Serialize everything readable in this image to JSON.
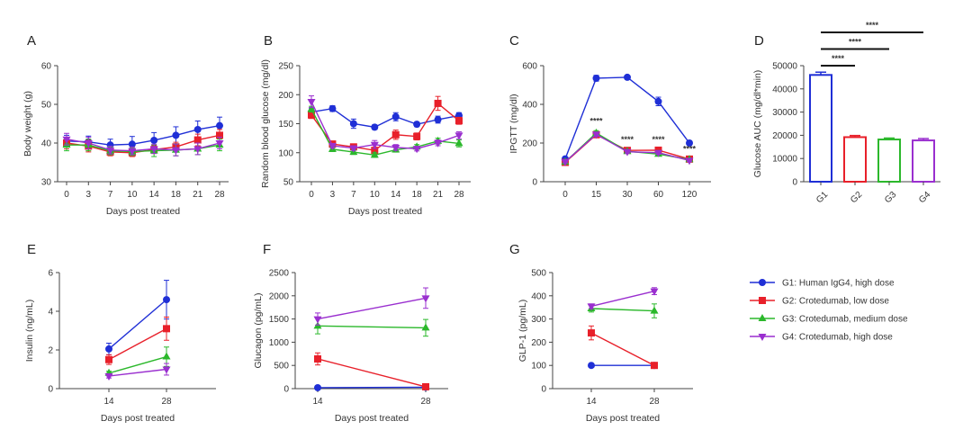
{
  "colors": {
    "G1": "#1f2fd6",
    "G2": "#e8202a",
    "G3": "#2bb82b",
    "G4": "#9a2fcf"
  },
  "legend": [
    {
      "group": "G1",
      "marker": "circle",
      "label": "G1: Human IgG4, high dose"
    },
    {
      "group": "G2",
      "marker": "square",
      "label": "G2: Crotedumab, low dose"
    },
    {
      "group": "G3",
      "marker": "triangle-up",
      "label": "G3: Crotedumab, medium dose"
    },
    {
      "group": "G4",
      "marker": "triangle-down",
      "label": "G4: Crotedumab, high dose"
    }
  ],
  "chart_data": [
    {
      "id": "A",
      "panel_label": "A",
      "type": "line",
      "xlabel": "Days post treated",
      "ylabel": "Body weight (g)",
      "categories": [
        "0",
        "3",
        "7",
        "10",
        "14",
        "18",
        "21",
        "28"
      ],
      "ylim": [
        30,
        60
      ],
      "yticks": [
        30,
        40,
        50,
        60
      ],
      "series": [
        {
          "group": "G1",
          "values": [
            40.5,
            40.3,
            39.5,
            39.7,
            40.7,
            42,
            43.5,
            44.5
          ],
          "err": [
            1.5,
            1.5,
            1.5,
            2,
            2,
            2.2,
            2.2,
            2.2
          ]
        },
        {
          "group": "G2",
          "values": [
            40,
            39.2,
            37.7,
            37.5,
            38.3,
            39,
            40.8,
            42
          ],
          "err": [
            1.5,
            1.5,
            1,
            1,
            1,
            1.2,
            1.5,
            1.5
          ]
        },
        {
          "group": "G3",
          "values": [
            39.5,
            39.5,
            38,
            37.8,
            38,
            38.2,
            38.5,
            39.5
          ],
          "err": [
            1.5,
            1.5,
            1,
            1,
            1.5,
            1.5,
            1.5,
            1.5
          ]
        },
        {
          "group": "G4",
          "values": [
            41,
            40,
            38.2,
            38,
            38.5,
            38.2,
            38.5,
            40
          ],
          "err": [
            1.5,
            1.5,
            1,
            1,
            1.2,
            1.5,
            1.5,
            1.5
          ]
        }
      ]
    },
    {
      "id": "B",
      "panel_label": "B",
      "type": "line",
      "xlabel": "Days post treated",
      "ylabel": "Random blood glucose (mg/dl)",
      "categories": [
        "0",
        "3",
        "7",
        "10",
        "14",
        "18",
        "21",
        "28"
      ],
      "ylim": [
        50,
        250
      ],
      "yticks": [
        50,
        100,
        150,
        200,
        250
      ],
      "series": [
        {
          "group": "G1",
          "values": [
            170,
            176,
            150,
            144,
            162,
            149,
            157,
            164
          ],
          "err": [
            6,
            5,
            8,
            4,
            7,
            4,
            6,
            5
          ]
        },
        {
          "group": "G2",
          "values": [
            165,
            115,
            110,
            104,
            131,
            128,
            185,
            155
          ],
          "err": [
            6,
            4,
            4,
            4,
            8,
            6,
            12,
            6
          ]
        },
        {
          "group": "G3",
          "values": [
            175,
            106,
            101,
            96,
            105,
            110,
            120,
            116
          ],
          "err": [
            5,
            4,
            4,
            4,
            4,
            4,
            5,
            6
          ]
        },
        {
          "group": "G4",
          "values": [
            188,
            112,
            108,
            114,
            109,
            107,
            117,
            130
          ],
          "err": [
            10,
            4,
            4,
            7,
            5,
            4,
            5,
            6
          ]
        }
      ]
    },
    {
      "id": "C",
      "panel_label": "C",
      "type": "line",
      "xlabel": "",
      "ylabel": "IPGTT (mg/dl)",
      "categories": [
        "0",
        "15",
        "30",
        "60",
        "120"
      ],
      "ylim": [
        0,
        600
      ],
      "yticks": [
        0,
        200,
        400,
        600
      ],
      "series": [
        {
          "group": "G1",
          "values": [
            118,
            535,
            540,
            415,
            200
          ],
          "err": [
            8,
            15,
            8,
            22,
            12
          ]
        },
        {
          "group": "G2",
          "values": [
            100,
            243,
            162,
            163,
            117
          ],
          "err": [
            6,
            12,
            8,
            8,
            6
          ]
        },
        {
          "group": "G3",
          "values": [
            102,
            252,
            157,
            143,
            115
          ],
          "err": [
            6,
            12,
            8,
            8,
            6
          ]
        },
        {
          "group": "G4",
          "values": [
            103,
            245,
            155,
            150,
            110
          ],
          "err": [
            6,
            12,
            8,
            8,
            6
          ]
        }
      ],
      "annotations": [
        {
          "x": "15",
          "text": "****",
          "y": 300
        },
        {
          "x": "30",
          "text": "****",
          "y": 205
        },
        {
          "x": "60",
          "text": "****",
          "y": 205
        },
        {
          "x": "120",
          "text": "****",
          "y": 155
        }
      ]
    },
    {
      "id": "D",
      "panel_label": "D",
      "type": "bar",
      "xlabel": "",
      "ylabel": "Glucose AUC (mg/dl*min)",
      "categories": [
        "G1",
        "G2",
        "G3",
        "G4"
      ],
      "values": [
        46000,
        19200,
        18200,
        17800
      ],
      "err": [
        1200,
        700,
        600,
        800
      ],
      "ylim": [
        0,
        50000
      ],
      "yticks": [
        0,
        10000,
        20000,
        30000,
        40000,
        50000
      ],
      "significance": [
        {
          "from": "G1",
          "to": "G2",
          "text": "****",
          "level": 1
        },
        {
          "from": "G1",
          "to": "G3",
          "text": "****",
          "level": 2
        },
        {
          "from": "G1",
          "to": "G4",
          "text": "****",
          "level": 3
        }
      ]
    },
    {
      "id": "E",
      "panel_label": "E",
      "type": "line",
      "xlabel": "Days post treated",
      "ylabel": "Insulin (ng/mL)",
      "categories": [
        "14",
        "28"
      ],
      "ylim": [
        0,
        6
      ],
      "yticks": [
        0,
        2,
        4,
        6
      ],
      "series": [
        {
          "group": "G1",
          "values": [
            2.05,
            4.6
          ],
          "err": [
            0.3,
            1.0
          ]
        },
        {
          "group": "G2",
          "values": [
            1.5,
            3.1
          ],
          "err": [
            0.25,
            0.6
          ]
        },
        {
          "group": "G3",
          "values": [
            0.8,
            1.65
          ],
          "err": [
            0.1,
            0.5
          ]
        },
        {
          "group": "G4",
          "values": [
            0.65,
            1.0
          ],
          "err": [
            0.1,
            0.3
          ]
        }
      ]
    },
    {
      "id": "F",
      "panel_label": "F",
      "type": "line",
      "xlabel": "Days post treated",
      "ylabel": "Glucagon (pg/mL)",
      "categories": [
        "14",
        "28"
      ],
      "ylim": [
        0,
        2500
      ],
      "yticks": [
        0,
        500,
        1000,
        1500,
        2000,
        2500
      ],
      "series": [
        {
          "group": "G1",
          "values": [
            20,
            30
          ],
          "err": [
            10,
            10
          ]
        },
        {
          "group": "G2",
          "values": [
            640,
            40
          ],
          "err": [
            130,
            15
          ]
        },
        {
          "group": "G3",
          "values": [
            1350,
            1310
          ],
          "err": [
            170,
            180
          ]
        },
        {
          "group": "G4",
          "values": [
            1500,
            1950
          ],
          "err": [
            130,
            220
          ]
        }
      ]
    },
    {
      "id": "G",
      "panel_label": "G",
      "type": "line",
      "xlabel": "Days post treated",
      "ylabel": "GLP-1 (pg/mL)",
      "categories": [
        "14",
        "28"
      ],
      "ylim": [
        0,
        500
      ],
      "yticks": [
        0,
        100,
        200,
        300,
        400,
        500
      ],
      "series": [
        {
          "group": "G1",
          "values": [
            100,
            100
          ],
          "err": [
            3,
            3
          ]
        },
        {
          "group": "G2",
          "values": [
            240,
            100
          ],
          "err": [
            30,
            5
          ]
        },
        {
          "group": "G3",
          "values": [
            345,
            335
          ],
          "err": [
            15,
            30
          ]
        },
        {
          "group": "G4",
          "values": [
            355,
            420
          ],
          "err": [
            10,
            15
          ]
        }
      ]
    }
  ]
}
